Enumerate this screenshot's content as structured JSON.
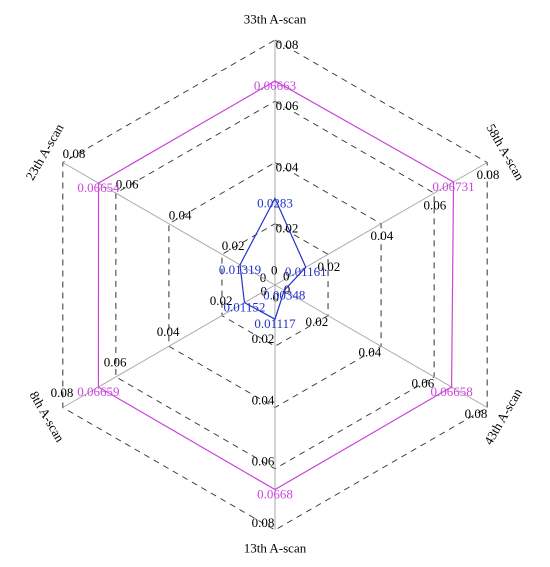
{
  "chart_data": {
    "type": "radar",
    "categories": [
      "33th A-scan",
      "58th A-scan",
      "43th A-scan",
      "13th A-scan",
      "8th A-scan",
      "23th A-scan"
    ],
    "rlim": [
      0,
      0.08
    ],
    "rticks": [
      0,
      0.02,
      0.04,
      0.06,
      0.08
    ],
    "series": [
      {
        "color": "#cc44dd",
        "values": [
          0.06663,
          0.06731,
          0.06658,
          0.0668,
          0.06659,
          0.06654
        ]
      },
      {
        "color": "#2233cc",
        "values": [
          0.0283,
          0.01161,
          0.00348,
          0.01117,
          0.01152,
          0.01319
        ]
      }
    ]
  }
}
